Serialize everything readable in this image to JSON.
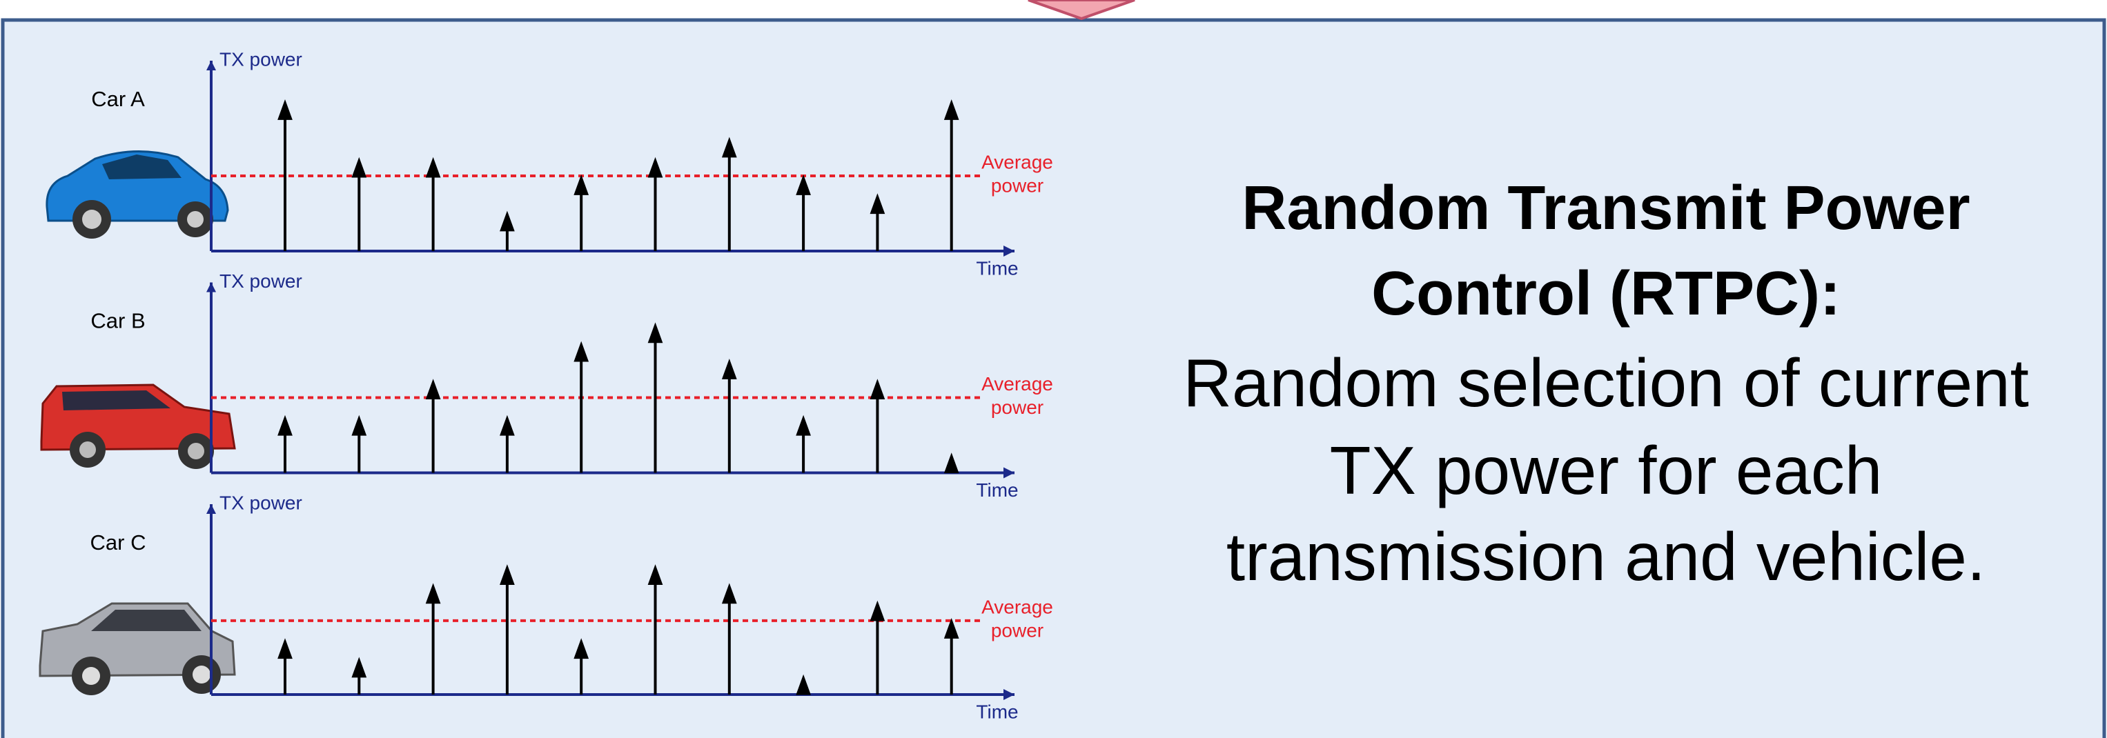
{
  "slide": {
    "title_lines": [
      "Random Transmit Power",
      "Control (RTPC):"
    ],
    "body_lines": [
      "Random selection of current",
      "TX power for each",
      "transmission and vehicle."
    ],
    "panels": [
      {
        "label": "Car A",
        "y_axis_label": "TX power",
        "x_axis_label": "Time",
        "average_label": [
          "Average",
          "power"
        ],
        "average": 56,
        "values": [
          110,
          67,
          67,
          27,
          54,
          67,
          82,
          54,
          40,
          110
        ]
      },
      {
        "label": "Car B",
        "y_axis_label": "TX power",
        "x_axis_label": "Time",
        "average_label": [
          "Average",
          "power"
        ],
        "average": 56,
        "values": [
          40,
          40,
          67,
          40,
          95,
          109,
          82,
          40,
          67,
          12
        ]
      },
      {
        "label": "Car C",
        "y_axis_label": "TX power",
        "x_axis_label": "Time",
        "average_label": [
          "Average",
          "power"
        ],
        "average": 55,
        "values": [
          39,
          25,
          80,
          94,
          39,
          94,
          80,
          12,
          67,
          54
        ]
      }
    ]
  }
}
